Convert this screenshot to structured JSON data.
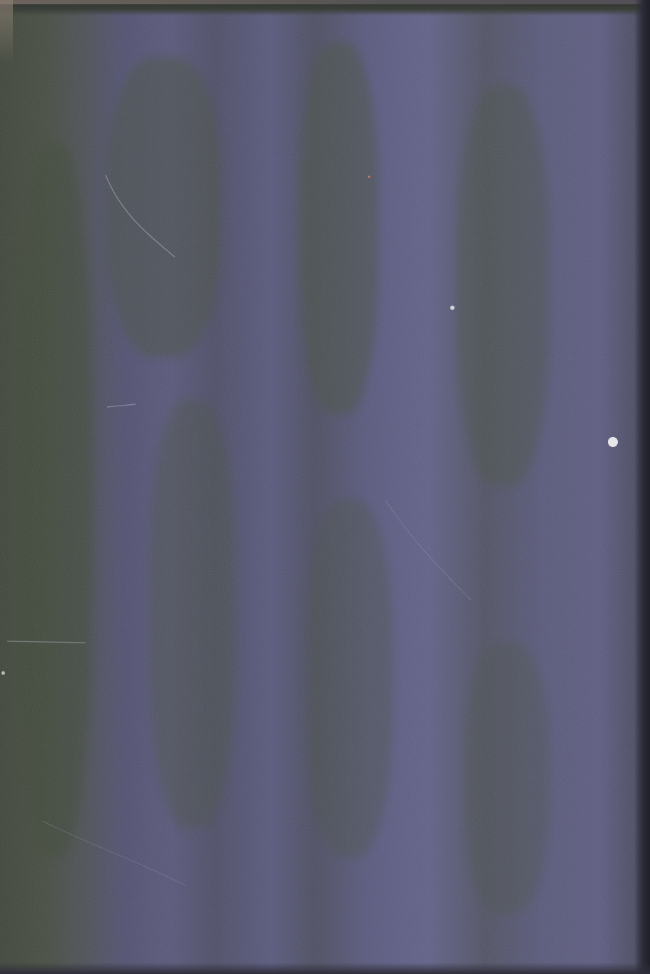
{
  "image": {
    "subject": "worn-book-cover",
    "colors": {
      "cloth": "#58587f",
      "cloth_dark": "#4b4c60",
      "green_tint": "#444a3e",
      "edge": "#2a2a36",
      "wear": "#8a7f73",
      "spot": "#e8e6e8"
    }
  }
}
